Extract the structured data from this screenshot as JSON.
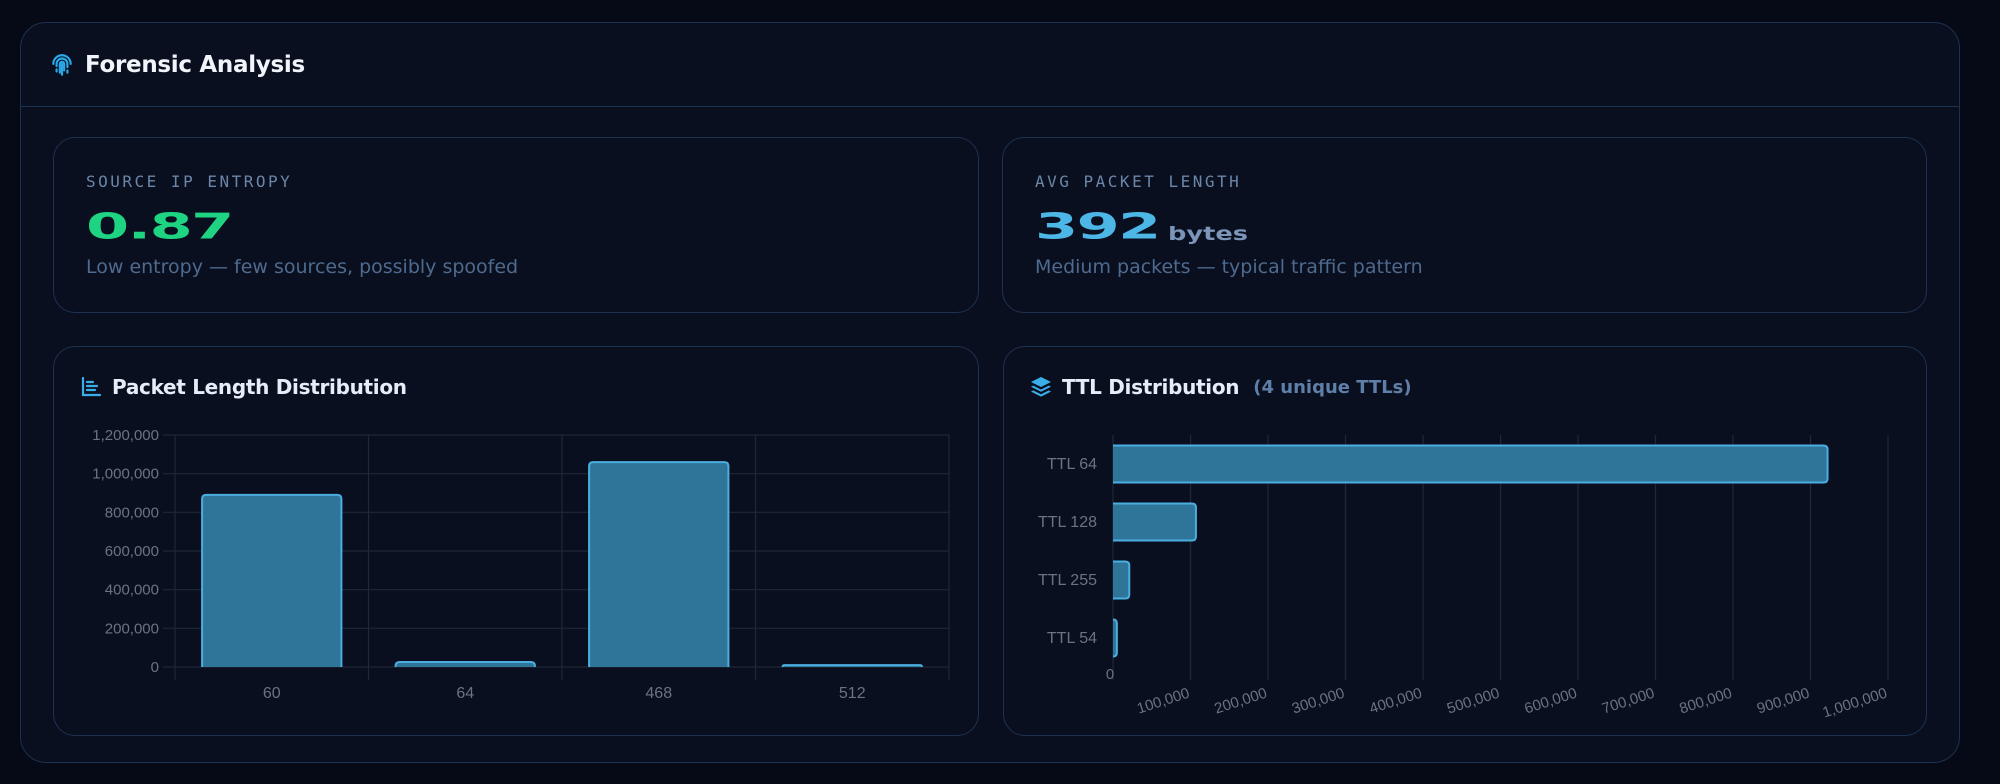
{
  "panel": {
    "title": "Forensic Analysis",
    "icon": "fingerprint-icon"
  },
  "stats": [
    {
      "label": "SOURCE IP ENTROPY",
      "value": "0.87",
      "unit": "",
      "description": "Low entropy — few sources, possibly spoofed",
      "color": "#1ed482"
    },
    {
      "label": "AVG PACKET LENGTH",
      "value": "392",
      "unit": "bytes",
      "description": "Medium packets — typical traffic pattern",
      "color": "#4cb6e6"
    }
  ],
  "charts": {
    "packet_length": {
      "title": "Packet Length Distribution",
      "icon": "bar-chart-icon"
    },
    "ttl": {
      "title": "TTL Distribution",
      "subtitle": "(4 unique TTLs)",
      "icon": "layers-icon"
    }
  },
  "colors": {
    "bar_fill": "#2f7599",
    "bar_stroke": "#4aaee0",
    "grid": "#1f2838",
    "tick_text": "#6b7383"
  },
  "chart_data": [
    {
      "type": "bar",
      "title": "Packet Length Distribution",
      "xlabel": "",
      "ylabel": "",
      "categories": [
        "60",
        "64",
        "468",
        "512"
      ],
      "values": [
        890000,
        26000,
        1060000,
        10000
      ],
      "ylim": [
        0,
        1200000
      ],
      "yticks": [
        0,
        200000,
        400000,
        600000,
        800000,
        1000000,
        1200000
      ],
      "ytick_labels": [
        "0",
        "200,000",
        "400,000",
        "600,000",
        "800,000",
        "1,000,000",
        "1,200,000"
      ],
      "grid": true,
      "legend": null
    },
    {
      "type": "bar",
      "orientation": "horizontal",
      "title": "TTL Distribution",
      "subtitle": "(4 unique TTLs)",
      "categories": [
        "TTL 64",
        "TTL 128",
        "TTL 255",
        "TTL 54"
      ],
      "values": [
        922000,
        107000,
        21000,
        5000
      ],
      "xlim": [
        0,
        1000000
      ],
      "xticks": [
        0,
        100000,
        200000,
        300000,
        400000,
        500000,
        600000,
        700000,
        800000,
        900000,
        1000000
      ],
      "xtick_labels": [
        "0",
        "100,000",
        "200,000",
        "300,000",
        "400,000",
        "500,000",
        "600,000",
        "700,000",
        "800,000",
        "900,000",
        "1,000,000"
      ],
      "grid": true,
      "legend": null
    }
  ]
}
